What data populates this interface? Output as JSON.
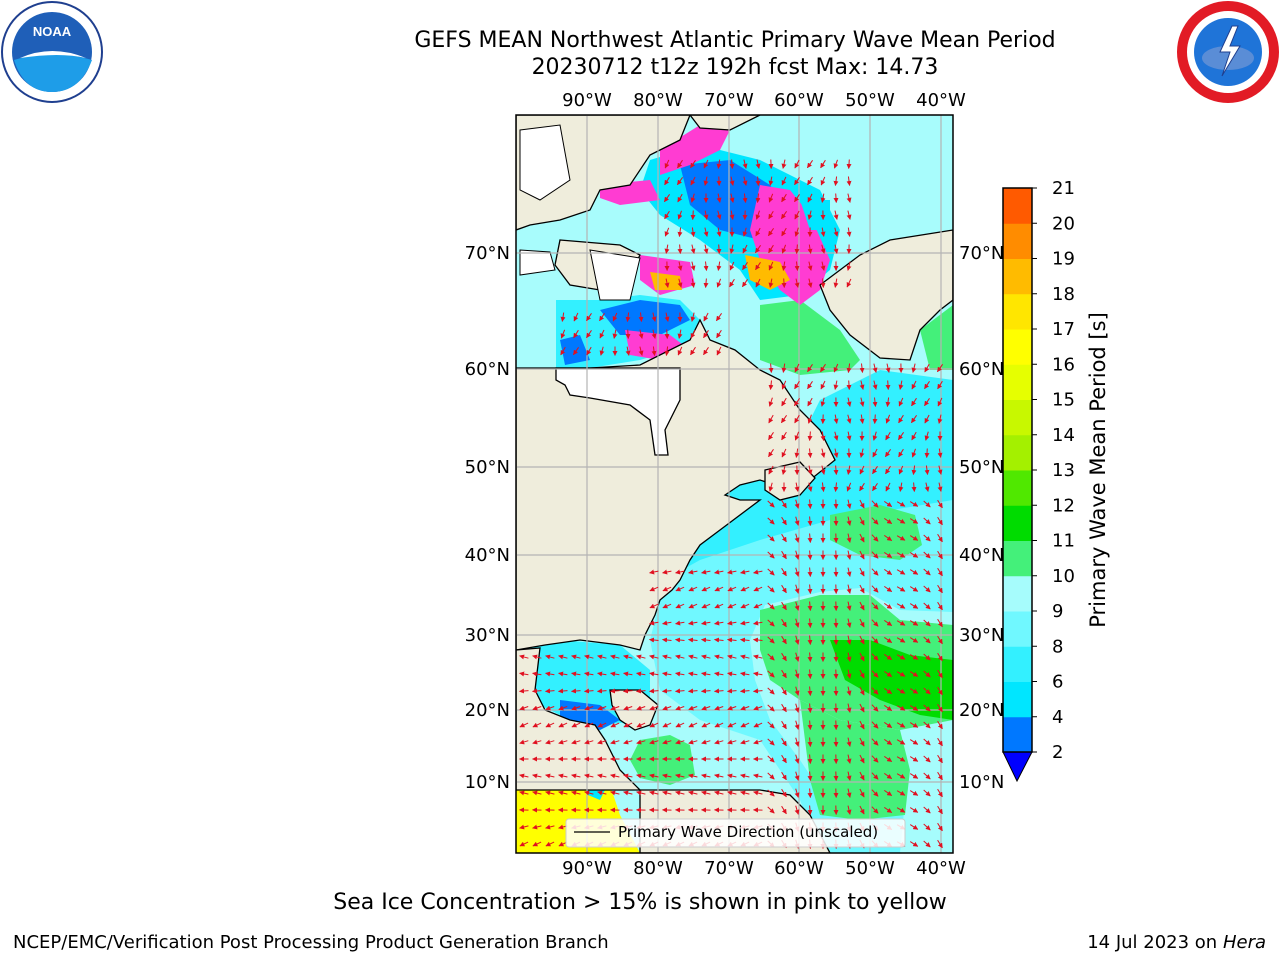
{
  "title": {
    "line1": "GEFS MEAN Northwest Atlantic Primary Wave Mean Period",
    "line2": "20230712 t12z 192h fcst   Max: 14.73"
  },
  "logos": {
    "left": "noaa-logo",
    "right": "nws-logo",
    "left_text": "NOAA"
  },
  "map": {
    "lon_labels": [
      "90°W",
      "80°W",
      "70°W",
      "60°W",
      "50°W",
      "40°W"
    ],
    "lat_labels": [
      "70°N",
      "60°N",
      "50°N",
      "40°N",
      "30°N",
      "20°N",
      "10°N"
    ],
    "legend_label": "Primary Wave Direction (unscaled)",
    "colors": {
      "land": "#efeddc",
      "ocean_base": "#a8fcfc",
      "arrow": "#e01020",
      "grid": "#b4b4b4"
    }
  },
  "colorbar": {
    "label": "Primary Wave Mean Period [s]",
    "ticks": [
      "2",
      "4",
      "6",
      "8",
      "9",
      "10",
      "11",
      "12",
      "13",
      "14",
      "15",
      "16",
      "17",
      "18",
      "19",
      "20",
      "21"
    ],
    "colors": [
      "#0078ff",
      "#00e6ff",
      "#33f0ff",
      "#70f8ff",
      "#a6fcfc",
      "#44f07a",
      "#00dc00",
      "#50e800",
      "#a4f000",
      "#c8f800",
      "#e6ff00",
      "#ffff00",
      "#ffe600",
      "#ffbb00",
      "#ff8c00",
      "#ff5a00",
      "#ff2a00",
      "#ff0000"
    ],
    "under_color": "#0000ff"
  },
  "footer": {
    "note": "Sea Ice Concentration > 15% is shown in pink to yellow",
    "credit_left": "NCEP/EMC/Verification Post Processing Product Generation Branch",
    "credit_right_date": "14 Jul 2023 on",
    "credit_right_host": "Hera"
  }
}
